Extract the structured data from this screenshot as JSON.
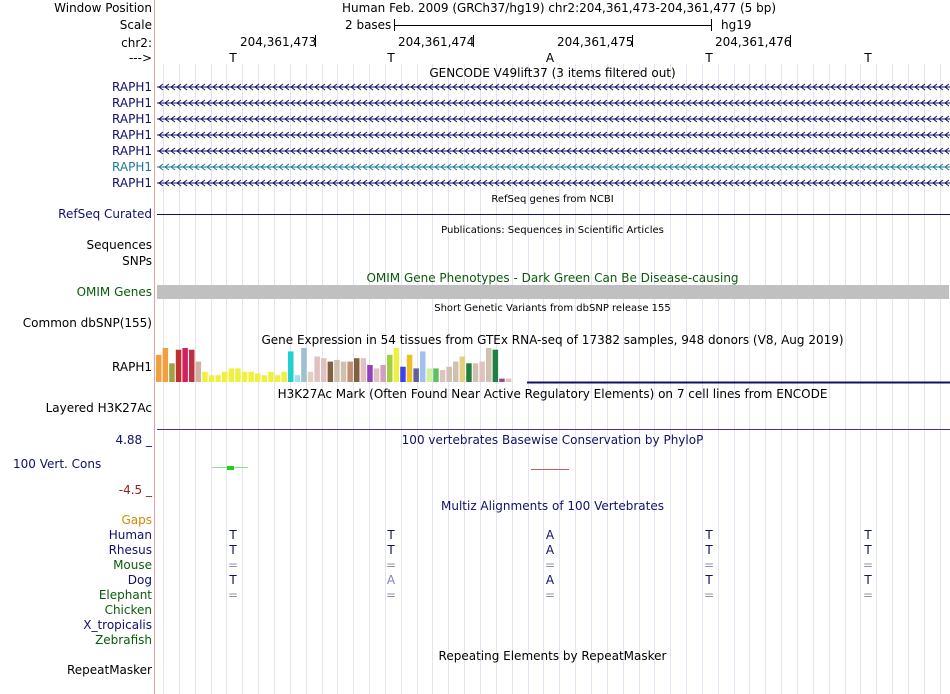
{
  "header": {
    "window_position_label": "Window Position",
    "window_position_value": "Human Feb. 2009 (GRCh37/hg19)   chr2:204,361,473-204,361,477 (5 bp)",
    "scale_label": "Scale",
    "scale_value": "2 bases",
    "scale_assembly": "hg19",
    "chrom_label": "chr2:",
    "strand_label": "--->",
    "coords": [
      "204,361,473",
      "204,361,474",
      "204,361,475",
      "204,361,476"
    ],
    "bases": [
      "T",
      "T",
      "A",
      "T",
      "T"
    ]
  },
  "gencode": {
    "title": "GENCODE V49lift37 (3 items filtered out)",
    "genes": [
      "RAPH1",
      "RAPH1",
      "RAPH1",
      "RAPH1",
      "RAPH1",
      "RAPH1",
      "RAPH1"
    ],
    "highlight_index": 5,
    "color": "#10106b",
    "highlight_color": "#1a7a9a"
  },
  "refseq": {
    "label": "RefSeq Curated",
    "title": "RefSeq genes from NCBI"
  },
  "publications": {
    "title": "Publications: Sequences in Scientific Articles",
    "seq_label": "Sequences",
    "snp_label": "SNPs"
  },
  "omim": {
    "title": "OMIM Gene Phenotypes - Dark Green Can Be Disease-causing",
    "label": "OMIM Genes"
  },
  "dbsnp": {
    "title": "Short Genetic Variants from dbSNP release 155",
    "label": "Common dbSNP(155)"
  },
  "gtex": {
    "title": "Gene Expression in 54 tissues from GTEx RNA-seq of 17382 samples, 948 donors (V8, Aug 2019)",
    "label": "RAPH1",
    "levels": [
      0.8,
      1,
      0.55,
      0.95,
      1,
      0.95,
      0.6,
      0.3,
      0.2,
      0.2,
      0.3,
      0.4,
      0.4,
      0.3,
      0.3,
      0.25,
      0.2,
      0.3,
      0.2,
      0.3,
      0.9,
      0.2,
      1,
      0.3,
      0.75,
      0.7,
      0.6,
      0.65,
      0.6,
      0.6,
      0.7,
      0.7,
      0.5,
      0.4,
      0.5,
      0.8,
      1,
      0.45,
      0.8,
      0.4,
      0.9,
      0.4,
      0.4,
      0.35,
      0.45,
      0.6,
      0.75,
      0.55,
      0.55,
      0.6,
      1,
      0.95,
      0.1,
      0.1
    ],
    "colors": [
      "#f0a040",
      "#f0a040",
      "#a0a040",
      "#c03030",
      "#d02060",
      "#c03040",
      "#d0b0a0",
      "#f0f040",
      "#f0f040",
      "#f0f040",
      "#f0f040",
      "#f0f040",
      "#f0f040",
      "#f0f040",
      "#f0f040",
      "#f0f040",
      "#f0f040",
      "#f0f040",
      "#f0f040",
      "#f0f040",
      "#20d0d0",
      "#a0e0f0",
      "#a0c0d0",
      "#e0d0c0",
      "#e0c0c0",
      "#e0c0c0",
      "#806040",
      "#d0c0b0",
      "#d0c0b0",
      "#c09070",
      "#806040",
      "#e0c0c0",
      "#9040c0",
      "#e0c0c0",
      "#d0a0c0",
      "#a0d040",
      "#f0f040",
      "#4040f0",
      "#f0c020",
      "#6060a0",
      "#a0c0f0",
      "#d0f0a0",
      "#60c060",
      "#e0c0c0",
      "#d0c0b0",
      "#d0c0b0",
      "#e0d080",
      "#208040",
      "#d0c0b0",
      "#e0c0c0",
      "#d0c0b0",
      "#208040",
      "#a040a0",
      "#e0c0c0"
    ]
  },
  "h3k27ac": {
    "title": "H3K27Ac Mark (Often Found Near Active Regulatory Elements) on 7 cell lines from ENCODE",
    "label": "Layered H3K27Ac"
  },
  "phylop": {
    "title": "100 vertebrates Basewise Conservation by PhyloP",
    "label": "100 Vert. Cons",
    "max": "4.88 _",
    "min": "-4.5 _",
    "color_pos": "#40e040",
    "color_neg": "#c06060"
  },
  "multiz": {
    "title": "Multiz Alignments of 100 Vertebrates",
    "gaps_label": "Gaps",
    "species": [
      {
        "name": "Human",
        "color": "#10106b",
        "bases": [
          "T",
          "T",
          "A",
          "T",
          "T"
        ]
      },
      {
        "name": "Rhesus",
        "color": "#10106b",
        "bases": [
          "T",
          "T",
          "A",
          "T",
          "T"
        ]
      },
      {
        "name": "Mouse",
        "color": "#0b5a0b",
        "bases": [
          "=",
          "=",
          "=",
          "=",
          "="
        ]
      },
      {
        "name": "Dog",
        "color": "#10106b",
        "bases": [
          "T",
          "A",
          "A",
          "T",
          "T"
        ]
      },
      {
        "name": "Elephant",
        "color": "#0b5a0b",
        "bases": [
          "=",
          "=",
          "=",
          "=",
          "="
        ]
      },
      {
        "name": "Chicken",
        "color": "#0b5a0b",
        "bases": []
      },
      {
        "name": "X_tropicalis",
        "color": "#10106b",
        "bases": []
      },
      {
        "name": "Zebrafish",
        "color": "#0b5a0b",
        "bases": []
      }
    ]
  },
  "repeatmasker": {
    "title": "Repeating Elements by RepeatMasker",
    "label": "RepeatMasker"
  }
}
